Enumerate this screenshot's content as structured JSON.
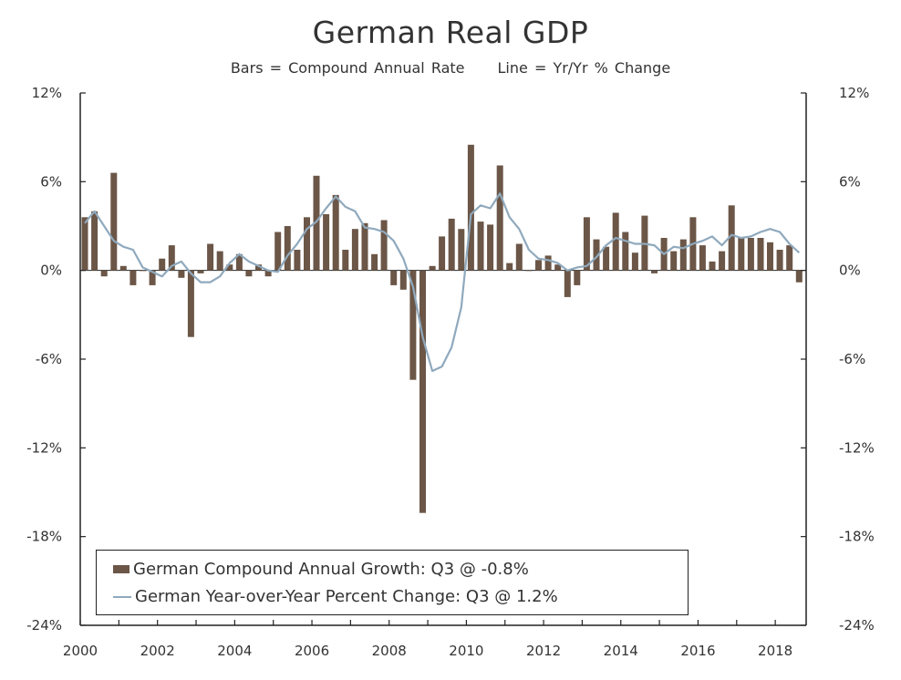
{
  "chart_data": {
    "type": "bar",
    "title": "German Real GDP",
    "subtitle": "Bars = Compound Annual Rate",
    "subtitle2": "Line = Yr/Yr % Change",
    "xlabel": "",
    "ylabel": "",
    "ylim": [
      -24,
      12
    ],
    "xlim": [
      2000,
      2018.8
    ],
    "y_ticks": [
      "12%",
      "6%",
      "0%",
      "-6%",
      "-12%",
      "-18%",
      "-24%"
    ],
    "y_tick_values": [
      12,
      6,
      0,
      -6,
      -12,
      -18,
      -24
    ],
    "x_ticks": [
      "2000",
      "2002",
      "2004",
      "2006",
      "2008",
      "2010",
      "2012",
      "2014",
      "2016",
      "2018"
    ],
    "x_tick_values": [
      2000,
      2002,
      2004,
      2006,
      2008,
      2010,
      2012,
      2014,
      2016,
      2018
    ],
    "colors": {
      "bars": "#6b5647",
      "line": "#8fa9bd",
      "axis": "#222222"
    },
    "series": [
      {
        "name": "German Compound Annual Growth: Q3 @ -0.8%",
        "type": "bar",
        "x": [
          2000.0,
          2000.25,
          2000.5,
          2000.75,
          2001.0,
          2001.25,
          2001.5,
          2001.75,
          2002.0,
          2002.25,
          2002.5,
          2002.75,
          2003.0,
          2003.25,
          2003.5,
          2003.75,
          2004.0,
          2004.25,
          2004.5,
          2004.75,
          2005.0,
          2005.25,
          2005.5,
          2005.75,
          2006.0,
          2006.25,
          2006.5,
          2006.75,
          2007.0,
          2007.25,
          2007.5,
          2007.75,
          2008.0,
          2008.25,
          2008.5,
          2008.75,
          2009.0,
          2009.25,
          2009.5,
          2009.75,
          2010.0,
          2010.25,
          2010.5,
          2010.75,
          2011.0,
          2011.25,
          2011.5,
          2011.75,
          2012.0,
          2012.25,
          2012.5,
          2012.75,
          2013.0,
          2013.25,
          2013.5,
          2013.75,
          2014.0,
          2014.25,
          2014.5,
          2014.75,
          2015.0,
          2015.25,
          2015.5,
          2015.75,
          2016.0,
          2016.25,
          2016.5,
          2016.75,
          2017.0,
          2017.25,
          2017.5,
          2017.75,
          2018.0,
          2018.25,
          2018.5
        ],
        "values": [
          3.6,
          4.0,
          -0.4,
          6.6,
          0.3,
          -1.0,
          0.0,
          -1.0,
          0.8,
          1.7,
          -0.5,
          -4.5,
          -0.2,
          1.8,
          1.3,
          0.4,
          1.1,
          -0.4,
          0.4,
          -0.4,
          2.6,
          3.0,
          1.4,
          3.6,
          6.4,
          3.8,
          5.1,
          1.4,
          2.8,
          3.2,
          1.1,
          3.4,
          -1.0,
          -1.3,
          -7.4,
          -16.4,
          0.3,
          2.3,
          3.5,
          2.8,
          8.5,
          3.3,
          3.1,
          7.1,
          0.5,
          1.8,
          0.0,
          0.7,
          1.0,
          0.4,
          -1.8,
          -1.0,
          3.6,
          2.1,
          1.6,
          3.9,
          2.6,
          1.2,
          3.7,
          -0.2,
          2.2,
          1.3,
          2.1,
          3.6,
          1.7,
          0.6,
          1.3,
          4.4,
          2.2,
          2.2,
          2.2,
          1.9,
          1.4,
          1.7,
          -0.8
        ]
      },
      {
        "name": "German Year-over-Year Percent Change: Q3 @ 1.2%",
        "type": "line",
        "x": [
          2000.0,
          2000.25,
          2000.5,
          2000.75,
          2001.0,
          2001.25,
          2001.5,
          2001.75,
          2002.0,
          2002.25,
          2002.5,
          2002.75,
          2003.0,
          2003.25,
          2003.5,
          2003.75,
          2004.0,
          2004.25,
          2004.5,
          2004.75,
          2005.0,
          2005.25,
          2005.5,
          2005.75,
          2006.0,
          2006.25,
          2006.5,
          2006.75,
          2007.0,
          2007.25,
          2007.5,
          2007.75,
          2008.0,
          2008.25,
          2008.5,
          2008.75,
          2009.0,
          2009.25,
          2009.5,
          2009.75,
          2010.0,
          2010.25,
          2010.5,
          2010.75,
          2011.0,
          2011.25,
          2011.5,
          2011.75,
          2012.0,
          2012.25,
          2012.5,
          2012.75,
          2013.0,
          2013.25,
          2013.5,
          2013.75,
          2014.0,
          2014.25,
          2014.5,
          2014.75,
          2015.0,
          2015.25,
          2015.5,
          2015.75,
          2016.0,
          2016.25,
          2016.5,
          2016.75,
          2017.0,
          2017.25,
          2017.5,
          2017.75,
          2018.0,
          2018.25,
          2018.5
        ],
        "values": [
          3.2,
          4.0,
          3.0,
          2.0,
          1.6,
          1.4,
          0.2,
          -0.1,
          -0.4,
          0.3,
          0.6,
          -0.2,
          -0.8,
          -0.8,
          -0.4,
          0.5,
          1.1,
          0.6,
          0.3,
          0.0,
          -0.1,
          1.0,
          1.8,
          2.8,
          3.3,
          4.2,
          5.0,
          4.3,
          4.0,
          2.9,
          2.8,
          2.6,
          2.0,
          0.8,
          -1.1,
          -4.5,
          -6.8,
          -6.5,
          -5.2,
          -2.5,
          3.8,
          4.4,
          4.2,
          5.2,
          3.6,
          2.8,
          1.4,
          0.8,
          0.7,
          0.5,
          0.0,
          0.2,
          0.3,
          0.9,
          1.7,
          2.2,
          2.0,
          1.8,
          1.8,
          1.7,
          1.1,
          1.6,
          1.5,
          1.8,
          2.0,
          2.3,
          1.7,
          2.4,
          2.2,
          2.3,
          2.6,
          2.8,
          2.6,
          1.8,
          1.2
        ]
      }
    ]
  }
}
